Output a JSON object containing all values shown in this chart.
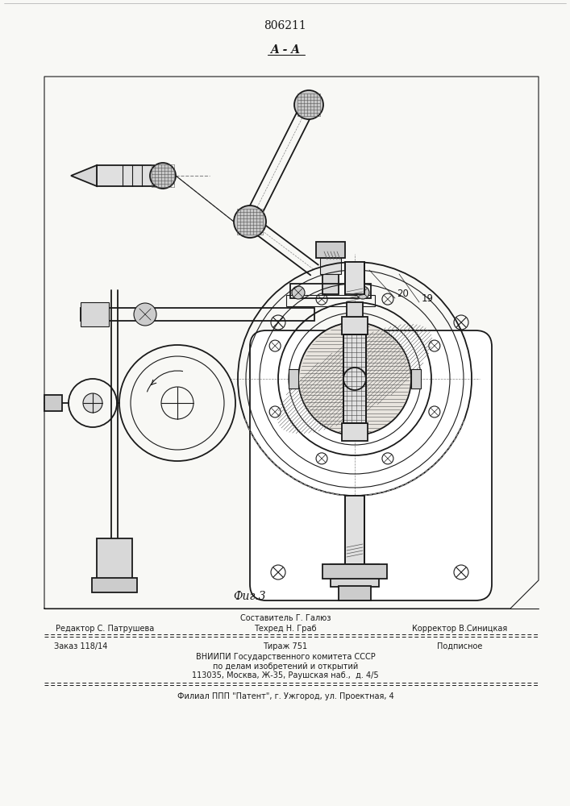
{
  "patent_number": "806211",
  "section_label": "A - A",
  "figure_label": "Фиг.3",
  "bg_color": "#f8f8f5",
  "line_color": "#1a1a1a",
  "lc_medium": "#222222",
  "footer_editor": "Редактор С. Патрушева",
  "footer_compiler_label": "Составитель Г. Галюз",
  "footer_techred": "Техред Н. Граб",
  "footer_corrector": "Корректор В.Синицкая",
  "footer_order": "Заказ 118/14",
  "footer_tirazh": "Тираж 751",
  "footer_podp": "Подписное",
  "footer_vniip1": "ВНИИПИ Государственного комитета СССР",
  "footer_vniip2": "по делам изобретений и открытий",
  "footer_addr": "113035, Москва, Ж-35, Раушская наб.,  д. 4/5",
  "footer_filial": "Филиал ППП \"Патент\", г. Ужгород, ул. Проектная, 4",
  "label_19": "19",
  "label_20": "20"
}
